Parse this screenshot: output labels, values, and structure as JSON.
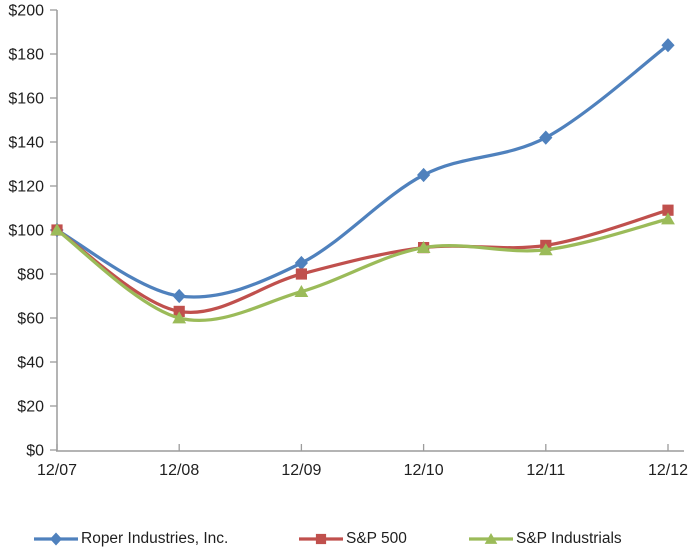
{
  "chart_data": {
    "type": "line",
    "title": "",
    "xlabel": "",
    "ylabel": "",
    "categories": [
      "12/07",
      "12/08",
      "12/09",
      "12/10",
      "12/11",
      "12/12"
    ],
    "series": [
      {
        "name": "Roper Industries, Inc.",
        "marker": "diamond",
        "color": "#4F81BD",
        "values": [
          100,
          70,
          85,
          125,
          142,
          184
        ]
      },
      {
        "name": "S&P 500",
        "marker": "square",
        "color": "#C0504D",
        "values": [
          100,
          63,
          80,
          92,
          93,
          109
        ]
      },
      {
        "name": "S&P Industrials",
        "marker": "triangle",
        "color": "#9BBB59",
        "values": [
          100,
          60,
          72,
          92,
          91,
          105
        ]
      }
    ],
    "ylim": [
      0,
      200
    ],
    "y_tick_step": 20,
    "y_tick_labels": [
      "$0",
      "$20",
      "$40",
      "$60",
      "$80",
      "$100",
      "$120",
      "$140",
      "$160",
      "$180",
      "$200"
    ],
    "grid": false,
    "smooth_lines": true,
    "legend_position": "bottom",
    "axis_color": "#9C9C9C",
    "text_color": "#1F1F1F"
  }
}
